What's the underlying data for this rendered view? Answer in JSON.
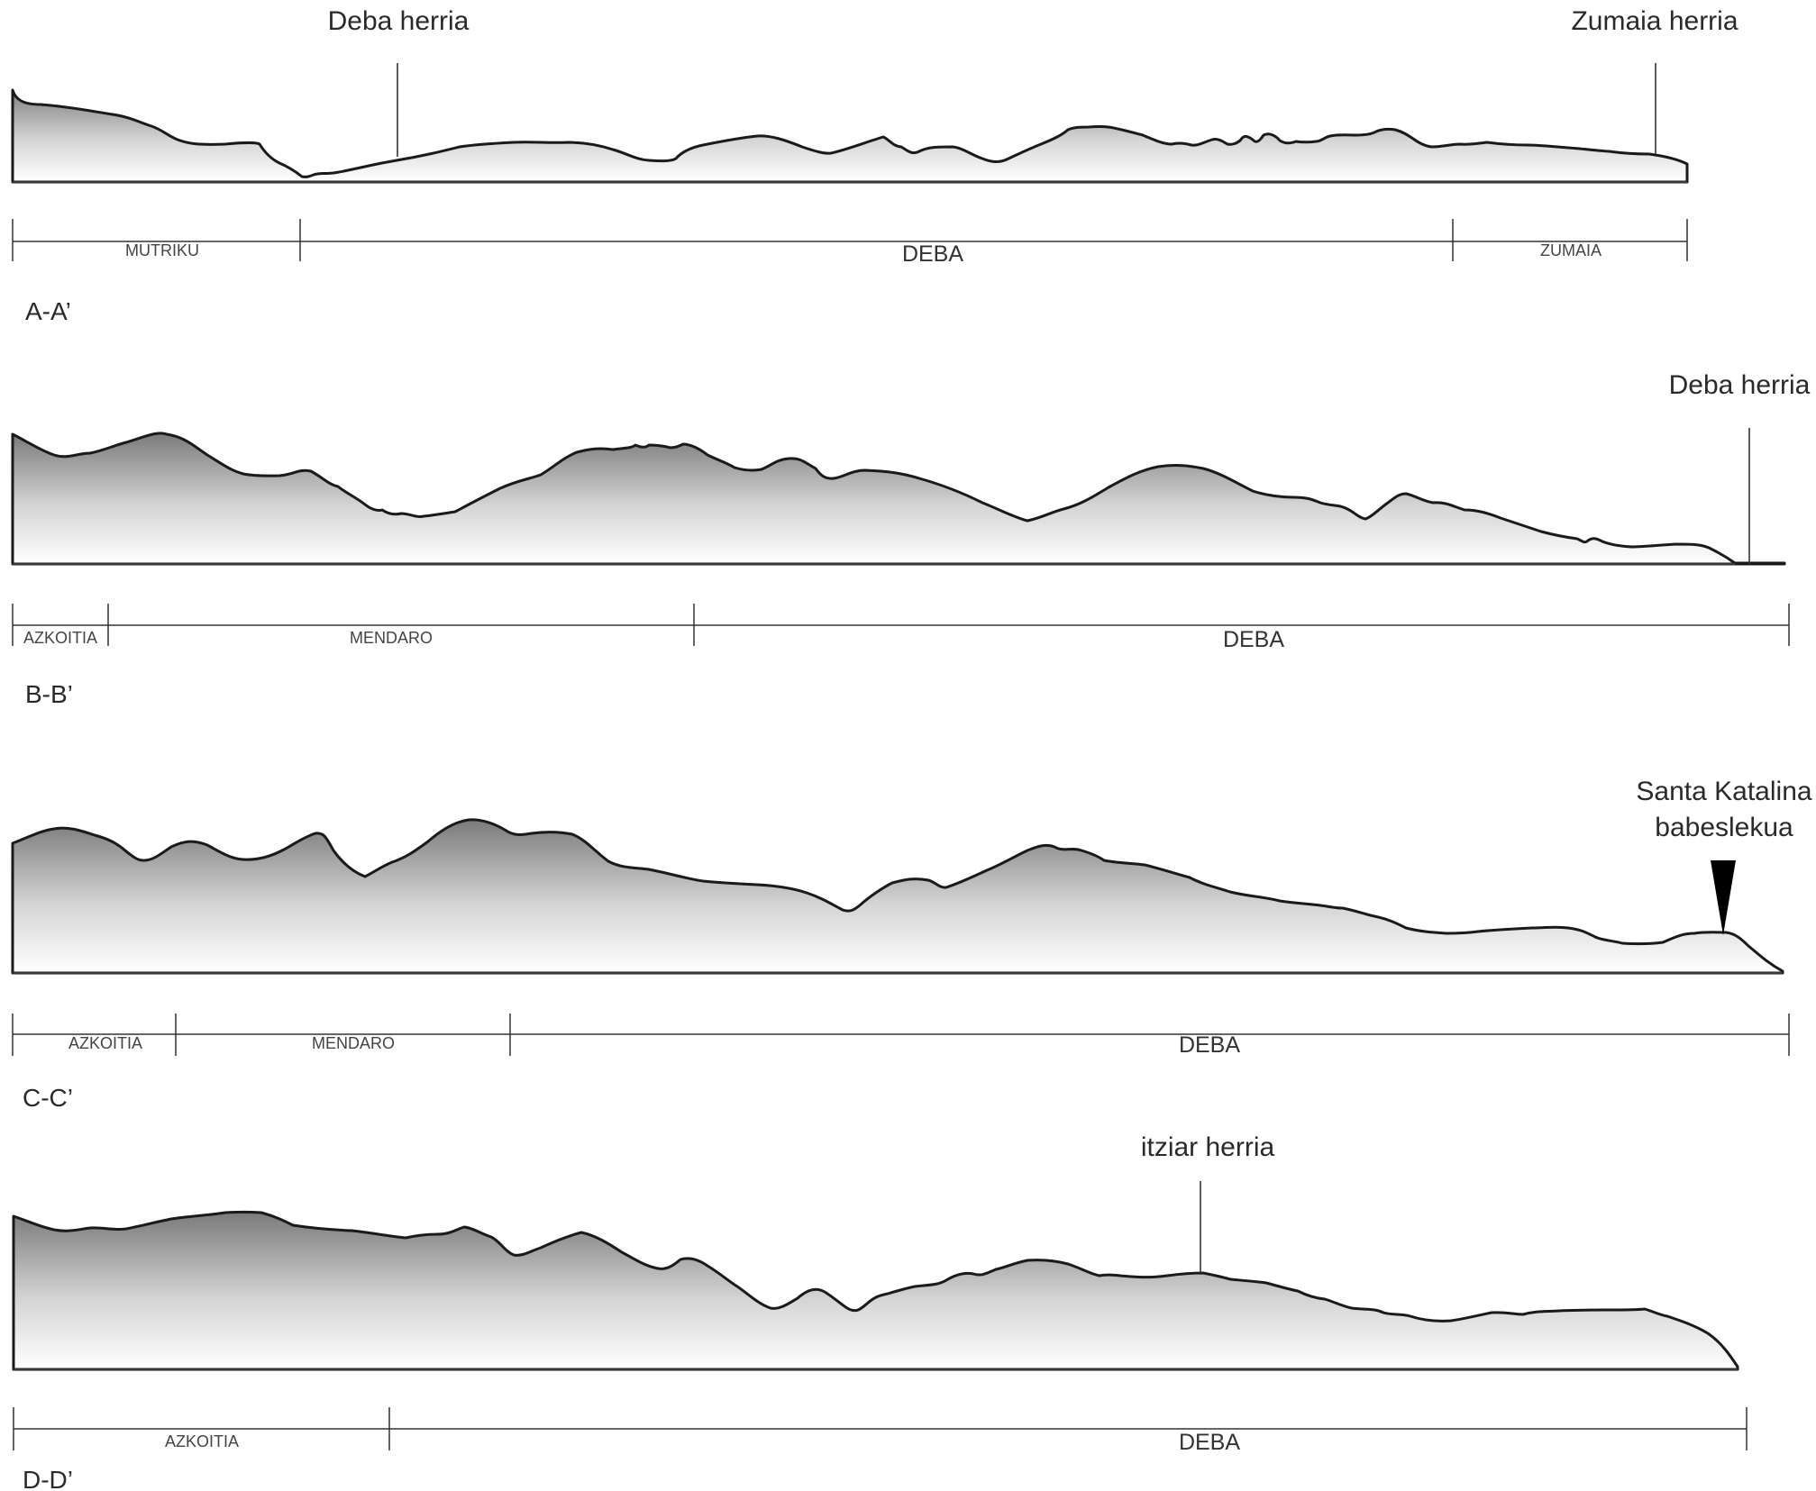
{
  "sections": [
    {
      "id": "A-A'",
      "label": "A-A’",
      "markers": [
        {
          "label": "Deba herria"
        },
        {
          "label": "Zumaia herria"
        }
      ],
      "municipalities": [
        "MUTRIKU",
        "DEBA",
        "ZUMAIA"
      ]
    },
    {
      "id": "B-B'",
      "label": "B-B’",
      "markers": [
        {
          "label": "Deba herria"
        }
      ],
      "municipalities": [
        "AZKOITIA",
        "MENDARO",
        "DEBA"
      ]
    },
    {
      "id": "C-C'",
      "label": "C-C’",
      "markers": [
        {
          "label_line1": "Santa Katalina",
          "label_line2": "babeslekua"
        }
      ],
      "municipalities": [
        "AZKOITIA",
        "MENDARO",
        "DEBA"
      ]
    },
    {
      "id": "D-D'",
      "label": "D-D’",
      "markers": [
        {
          "label": "itziar herria"
        }
      ],
      "municipalities": [
        "AZKOITIA",
        "DEBA"
      ]
    }
  ],
  "colors": {
    "outline": "#1a1a1a",
    "fill_top": "#7a7a7a",
    "fill_bottom": "#ffffff"
  }
}
